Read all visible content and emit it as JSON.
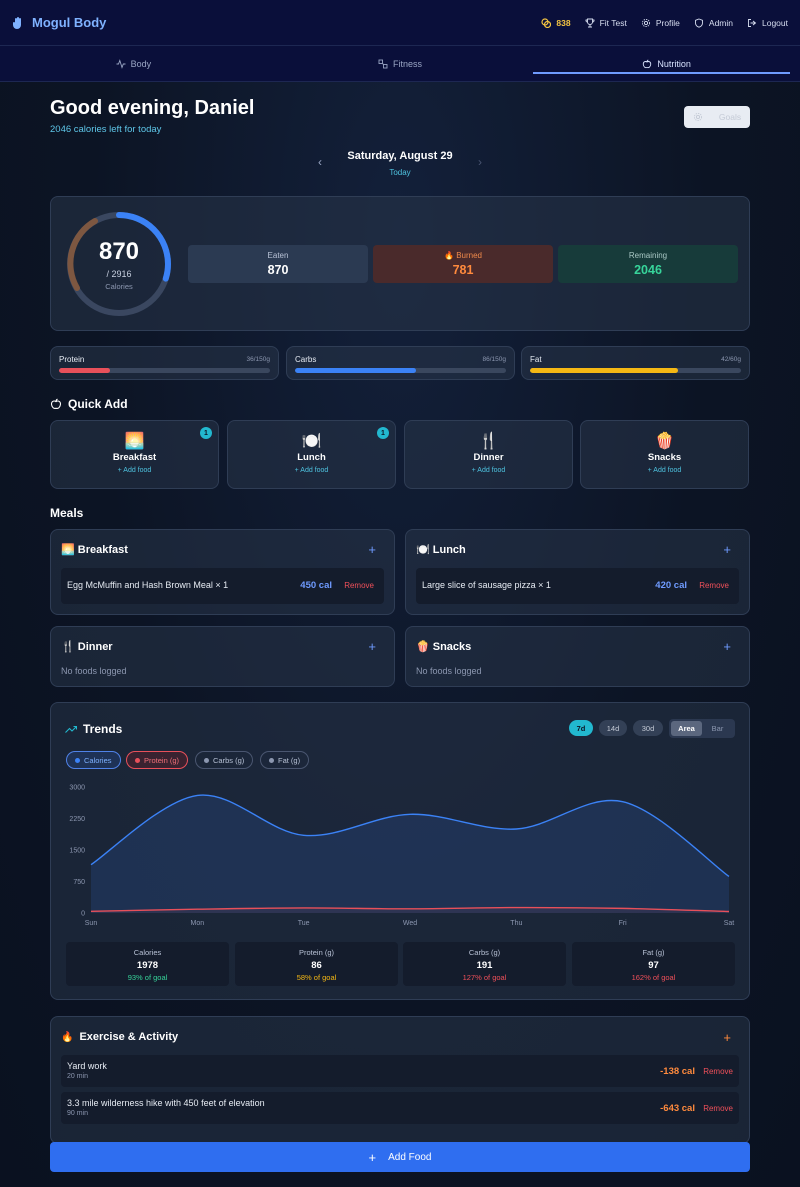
{
  "app": {
    "title": "Mogul Body"
  },
  "topnav": {
    "coins": "838",
    "fit_test": "Fit Test",
    "profile": "Profile",
    "admin": "Admin",
    "logout": "Logout"
  },
  "tabs": [
    {
      "label": "Body",
      "icon": "activity-icon"
    },
    {
      "label": "Fitness",
      "icon": "dumbbell-icon"
    },
    {
      "label": "Nutrition",
      "icon": "apple-icon",
      "active": true
    }
  ],
  "header": {
    "greeting": "Good evening, Daniel",
    "subtitle": "2046 calories left for today",
    "goals_label": "Goals"
  },
  "date": {
    "label": "Saturday, August 29",
    "sub": "Today"
  },
  "calories": {
    "eaten_value": "870",
    "goal_text": "/ 2916",
    "unit_label": "Calories",
    "eaten_fraction": 0.298,
    "eaten_label": "Eaten",
    "eaten": "870",
    "burned_label": "Burned",
    "burned": "781",
    "remaining_label": "Remaining",
    "remaining": "2046"
  },
  "macros": [
    {
      "name": "Protein",
      "amount": "36/150g",
      "fraction": 0.24,
      "color": "#e8505a"
    },
    {
      "name": "Carbs",
      "amount": "86/150g",
      "fraction": 0.573,
      "color": "#3b82f6"
    },
    {
      "name": "Fat",
      "amount": "42/60g",
      "fraction": 0.7,
      "color": "#f5b814"
    }
  ],
  "quick_add": {
    "title": "Quick Add",
    "items": [
      {
        "name": "Breakfast",
        "emoji": "🌅",
        "add": "+ Add food",
        "badge": "1"
      },
      {
        "name": "Lunch",
        "emoji": "🍽️",
        "add": "+ Add food",
        "badge": "1"
      },
      {
        "name": "Dinner",
        "emoji": "🍴",
        "add": "+ Add food",
        "badge": ""
      },
      {
        "name": "Snacks",
        "emoji": "🍿",
        "add": "+ Add food",
        "badge": ""
      }
    ]
  },
  "meals": {
    "title": "Meals",
    "breakfast": {
      "title": "🌅 Breakfast",
      "food": "Egg McMuffin and Hash Brown Meal × 1",
      "cal": "450 cal",
      "remove": "Remove"
    },
    "lunch": {
      "title": "🍽️ Lunch",
      "food": "Large slice of sausage pizza × 1",
      "cal": "420 cal",
      "remove": "Remove"
    },
    "dinner": {
      "title": "🍴 Dinner",
      "empty": "No foods logged"
    },
    "snacks": {
      "title": "🍿 Snacks",
      "empty": "No foods logged"
    }
  },
  "trends": {
    "title": "Trends",
    "ranges": [
      "7d",
      "14d",
      "30d"
    ],
    "modes": [
      "Area",
      "Bar"
    ],
    "legend": [
      "Calories",
      "Protein (g)",
      "Carbs (g)",
      "Fat (g)"
    ],
    "summary": [
      {
        "label": "Calories",
        "value": "1978",
        "goal": "93% of goal",
        "color": "#37d49a"
      },
      {
        "label": "Protein (g)",
        "value": "86",
        "goal": "58% of goal",
        "color": "#f5b814"
      },
      {
        "label": "Carbs (g)",
        "value": "191",
        "goal": "127% of goal",
        "color": "#f0505a"
      },
      {
        "label": "Fat (g)",
        "value": "97",
        "goal": "162% of goal",
        "color": "#f0505a"
      }
    ]
  },
  "chart_data": {
    "type": "area",
    "categories": [
      "Sun",
      "Mon",
      "Tue",
      "Wed",
      "Thu",
      "Fri",
      "Sat"
    ],
    "yticks": [
      "0",
      "750",
      "1500",
      "2250",
      "3000"
    ],
    "ylim": [
      0,
      3000
    ],
    "series": [
      {
        "name": "Calories",
        "values": [
          1150,
          2800,
          1850,
          2350,
          2000,
          2650,
          870
        ],
        "color": "#3b82f6"
      },
      {
        "name": "Protein (g)",
        "values": [
          40,
          90,
          120,
          100,
          130,
          110,
          36
        ],
        "color": "#e8505a"
      }
    ]
  },
  "exercise": {
    "title": "Exercise & Activity",
    "items": [
      {
        "name": "Yard work",
        "duration": "20 min",
        "cal": "-138 cal",
        "remove": "Remove"
      },
      {
        "name": "3.3 mile wilderness hike with 450 feet of elevation",
        "duration": "90 min",
        "cal": "-643 cal",
        "remove": "Remove"
      }
    ]
  },
  "add_food_label": "Add Food"
}
